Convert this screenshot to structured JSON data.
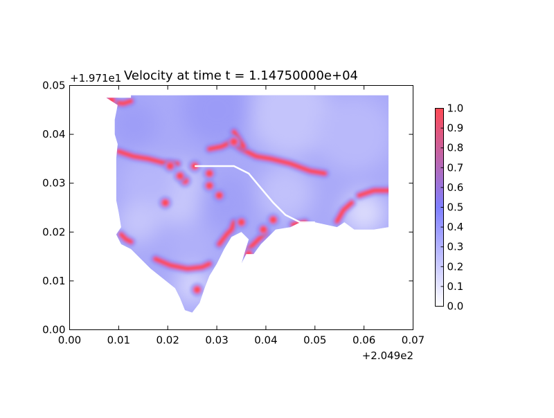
{
  "chart_data": {
    "type": "heatmap",
    "title": "Velocity at time t = 1.14750000e+04",
    "x_offset_label": "+2.049e2",
    "y_offset_label": "+1.971e1",
    "xlim": [
      0.0,
      0.07
    ],
    "ylim": [
      0.0,
      0.05
    ],
    "x_ticks": [
      "0.00",
      "0.01",
      "0.02",
      "0.03",
      "0.04",
      "0.05",
      "0.06",
      "0.07"
    ],
    "y_ticks": [
      "0.00",
      "0.01",
      "0.02",
      "0.03",
      "0.04",
      "0.05"
    ],
    "colorbar": {
      "range": [
        0.0,
        1.0
      ],
      "ticks": [
        "0.0",
        "0.1",
        "0.2",
        "0.3",
        "0.4",
        "0.5",
        "0.6",
        "0.7",
        "0.8",
        "0.9",
        "1.0"
      ],
      "colors": {
        "low": "#ffffff",
        "mid": "#7f7fff",
        "high": "#ff4a55"
      }
    },
    "grid": false,
    "domain_outline": [
      [
        0.0075,
        0.0475
      ],
      [
        0.0125,
        0.0475
      ],
      [
        0.0125,
        0.048
      ],
      [
        0.065,
        0.048
      ],
      [
        0.065,
        0.021
      ],
      [
        0.062,
        0.0205
      ],
      [
        0.058,
        0.0205
      ],
      [
        0.056,
        0.022
      ],
      [
        0.0545,
        0.021
      ],
      [
        0.05,
        0.022
      ],
      [
        0.047,
        0.022
      ],
      [
        0.045,
        0.021
      ],
      [
        0.042,
        0.0205
      ],
      [
        0.039,
        0.0175
      ],
      [
        0.0375,
        0.0155
      ],
      [
        0.036,
        0.0155
      ],
      [
        0.035,
        0.0135
      ],
      [
        0.0365,
        0.0185
      ],
      [
        0.035,
        0.02
      ],
      [
        0.033,
        0.019
      ],
      [
        0.0315,
        0.0165
      ],
      [
        0.03,
        0.0135
      ],
      [
        0.0285,
        0.011
      ],
      [
        0.0275,
        0.0085
      ],
      [
        0.0265,
        0.0055
      ],
      [
        0.025,
        0.0035
      ],
      [
        0.0235,
        0.004
      ],
      [
        0.0225,
        0.0065
      ],
      [
        0.0215,
        0.0085
      ],
      [
        0.019,
        0.0105
      ],
      [
        0.0165,
        0.0125
      ],
      [
        0.0145,
        0.0145
      ],
      [
        0.0125,
        0.0165
      ],
      [
        0.0105,
        0.0175
      ],
      [
        0.0095,
        0.0195
      ],
      [
        0.0105,
        0.021
      ],
      [
        0.01,
        0.024
      ],
      [
        0.0095,
        0.0265
      ],
      [
        0.0095,
        0.03
      ],
      [
        0.0095,
        0.035
      ],
      [
        0.0098,
        0.038
      ],
      [
        0.0092,
        0.04
      ],
      [
        0.0092,
        0.043
      ],
      [
        0.0098,
        0.046
      ]
    ],
    "channel_line": [
      [
        0.0255,
        0.0335
      ],
      [
        0.03,
        0.0335
      ],
      [
        0.0335,
        0.0335
      ],
      [
        0.0365,
        0.032
      ],
      [
        0.039,
        0.029
      ],
      [
        0.0415,
        0.026
      ],
      [
        0.044,
        0.0235
      ],
      [
        0.047,
        0.022
      ],
      [
        0.05,
        0.022
      ]
    ],
    "high_velocity_bands": [
      [
        [
          0.0075,
          0.0475
        ],
        [
          0.0085,
          0.0473
        ],
        [
          0.0095,
          0.0465
        ],
        [
          0.011,
          0.0463
        ],
        [
          0.0125,
          0.0468
        ]
      ],
      [
        [
          0.01,
          0.0365
        ],
        [
          0.013,
          0.0355
        ],
        [
          0.016,
          0.035
        ],
        [
          0.019,
          0.0342
        ],
        [
          0.022,
          0.034
        ]
      ],
      [
        [
          0.0285,
          0.037
        ],
        [
          0.031,
          0.0375
        ],
        [
          0.033,
          0.0385
        ],
        [
          0.035,
          0.037
        ],
        [
          0.038,
          0.0355
        ],
        [
          0.041,
          0.035
        ],
        [
          0.045,
          0.034
        ],
        [
          0.049,
          0.0325
        ],
        [
          0.052,
          0.032
        ]
      ],
      [
        [
          0.0335,
          0.0405
        ],
        [
          0.0345,
          0.039
        ],
        [
          0.0355,
          0.0375
        ]
      ],
      [
        [
          0.0175,
          0.0145
        ],
        [
          0.0205,
          0.0132
        ],
        [
          0.024,
          0.0125
        ],
        [
          0.027,
          0.0128
        ],
        [
          0.0285,
          0.0135
        ]
      ],
      [
        [
          0.0305,
          0.0175
        ],
        [
          0.032,
          0.0195
        ],
        [
          0.033,
          0.0205
        ],
        [
          0.0335,
          0.022
        ]
      ],
      [
        [
          0.0365,
          0.0165
        ],
        [
          0.0375,
          0.0175
        ],
        [
          0.0385,
          0.0185
        ],
        [
          0.04,
          0.0198
        ]
      ],
      [
        [
          0.0455,
          0.0215
        ],
        [
          0.048,
          0.022
        ]
      ],
      [
        [
          0.0545,
          0.0222
        ],
        [
          0.0558,
          0.0245
        ],
        [
          0.0575,
          0.026
        ]
      ],
      [
        [
          0.059,
          0.0275
        ],
        [
          0.062,
          0.0285
        ],
        [
          0.065,
          0.0285
        ]
      ],
      [
        [
          0.0105,
          0.0195
        ],
        [
          0.0115,
          0.0185
        ],
        [
          0.0125,
          0.018
        ]
      ]
    ],
    "hot_spots": [
      [
        0.0285,
        0.0295
      ],
      [
        0.0305,
        0.0275
      ],
      [
        0.0335,
        0.0385
      ],
      [
        0.0235,
        0.0305
      ],
      [
        0.0205,
        0.0335
      ],
      [
        0.0255,
        0.0335
      ],
      [
        0.0285,
        0.032
      ],
      [
        0.035,
        0.022
      ],
      [
        0.026,
        0.0082
      ],
      [
        0.0195,
        0.026
      ],
      [
        0.0395,
        0.0205
      ],
      [
        0.0415,
        0.0225
      ],
      [
        0.0365,
        0.0155
      ],
      [
        0.0225,
        0.0315
      ],
      [
        0.0085,
        0.047
      ]
    ]
  }
}
